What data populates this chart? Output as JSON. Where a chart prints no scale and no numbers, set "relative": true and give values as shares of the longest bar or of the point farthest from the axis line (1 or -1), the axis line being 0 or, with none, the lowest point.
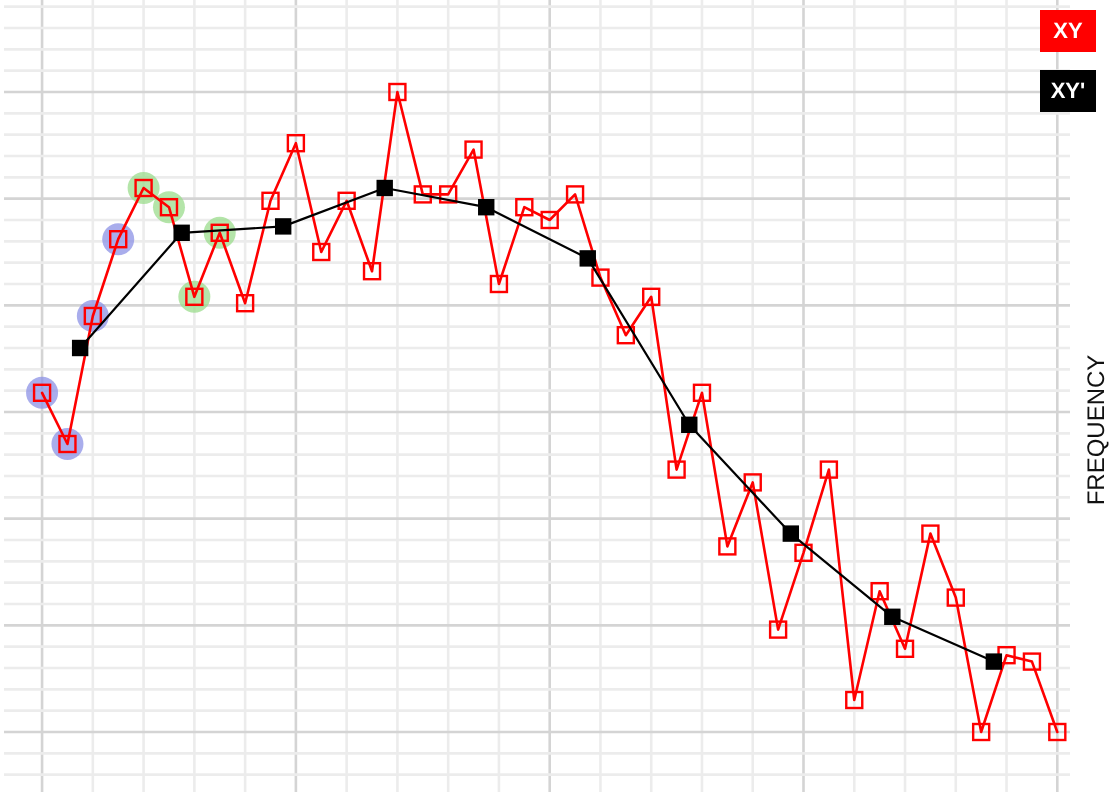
{
  "chart_data": {
    "type": "line",
    "ylabel": "FREQUENCY",
    "relative": true,
    "grid": true,
    "legend": "top right",
    "marker": "square",
    "categories": [
      null,
      null,
      null,
      null,
      null,
      null,
      null,
      null,
      null,
      null,
      null,
      null,
      null,
      null,
      null,
      null,
      null,
      null,
      null,
      null,
      null,
      null,
      null,
      null,
      null,
      null,
      null,
      null,
      null,
      null,
      null,
      null,
      null,
      null,
      null,
      null,
      null,
      null,
      null,
      null,
      null,
      null,
      null,
      null,
      null,
      null,
      null,
      null,
      null,
      null,
      null,
      null,
      null,
      null,
      null,
      null,
      null,
      null,
      null,
      null,
      null,
      null,
      null,
      null,
      null,
      null,
      null,
      null,
      null,
      null,
      null,
      null,
      null,
      null,
      null,
      null,
      null,
      null,
      null,
      null,
      null
    ],
    "series": [
      {
        "name": "XY",
        "color": "#ff0000",
        "values": [
          0.53,
          null,
          0.45,
          null,
          0.65,
          null,
          0.77,
          null,
          0.85,
          null,
          0.82,
          null,
          0.68,
          null,
          0.78,
          null,
          0.67,
          null,
          0.83,
          null,
          0.92,
          null,
          0.75,
          null,
          0.83,
          null,
          0.72,
          null,
          1,
          null,
          0.84,
          null,
          0.84,
          null,
          0.91,
          null,
          0.7,
          null,
          0.82,
          null,
          0.8,
          null,
          0.84,
          null,
          0.71,
          null,
          0.62,
          null,
          0.68,
          null,
          0.41,
          null,
          0.53,
          null,
          0.29,
          null,
          0.39,
          null,
          0.16,
          null,
          0.28,
          null,
          0.41,
          null,
          0.05,
          null,
          0.22,
          null,
          0.13,
          null,
          0.31,
          null,
          0.21,
          null,
          0,
          null,
          0.12,
          null,
          0.11,
          null,
          0
        ]
      },
      {
        "name": "XY'",
        "color": "#000000",
        "values": [
          null,
          null,
          null,
          0.6,
          null,
          null,
          null,
          null,
          null,
          null,
          null,
          0.78,
          null,
          null,
          null,
          null,
          null,
          null,
          null,
          0.79,
          null,
          null,
          null,
          null,
          null,
          null,
          null,
          0.85,
          null,
          null,
          null,
          null,
          null,
          null,
          null,
          0.82,
          null,
          null,
          null,
          null,
          null,
          null,
          null,
          0.74,
          null,
          null,
          null,
          null,
          null,
          null,
          null,
          0.48,
          null,
          null,
          null,
          null,
          null,
          null,
          null,
          0.31,
          null,
          null,
          null,
          null,
          null,
          null,
          null,
          0.18,
          null,
          null,
          null,
          null,
          null,
          null,
          null,
          0.11,
          null,
          null,
          null,
          null,
          null
        ]
      }
    ]
  }
}
